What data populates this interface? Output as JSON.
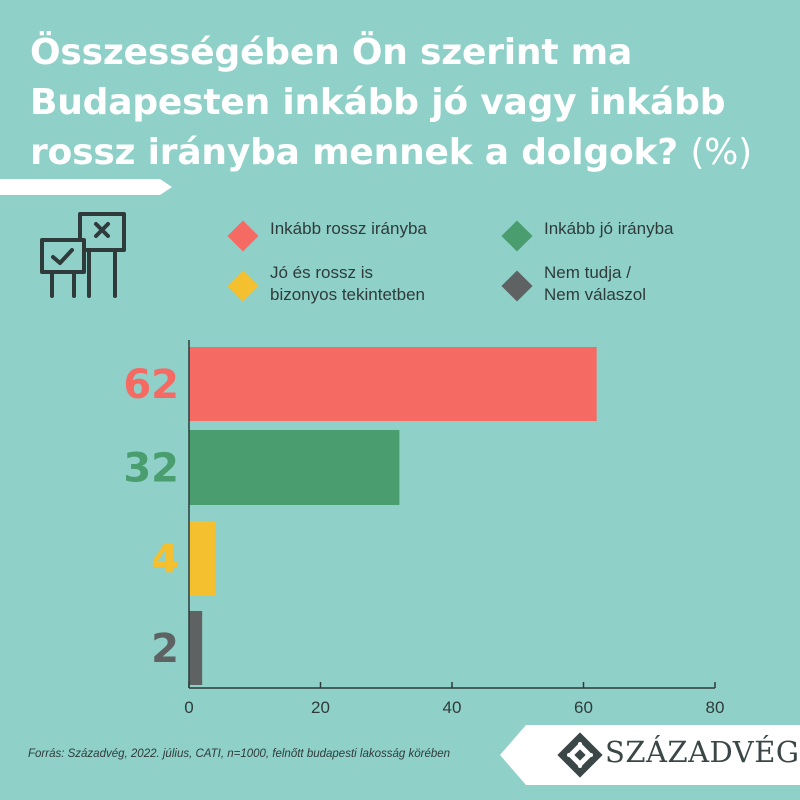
{
  "title": {
    "text": "Összességében Ön szerint ma Budapesten inkább jó vagy inkább rossz irányba mennek a dolgok?",
    "unit": "(%)"
  },
  "legend": [
    {
      "label": "Inkább rossz irányba",
      "color": "#f56b63"
    },
    {
      "label": "Inkább jó irányba",
      "color": "#4a9d6f"
    },
    {
      "label": "Jó és rossz is\nbizonyos tekintetben",
      "color": "#f5c02f"
    },
    {
      "label": "Nem tudja /\nNem válaszol",
      "color": "#5f6262"
    }
  ],
  "chart_data": {
    "type": "bar",
    "orientation": "horizontal",
    "title": "Összességében Ön szerint ma Budapesten inkább jó vagy inkább rossz irányba mennek a dolgok? (%)",
    "categories": [
      "Inkább rossz irányba",
      "Inkább jó irányba",
      "Jó és rossz is bizonyos tekintetben",
      "Nem tudja / Nem válaszol"
    ],
    "values": [
      62,
      32,
      4,
      2
    ],
    "colors": [
      "#f56b63",
      "#4a9d6f",
      "#f5c02f",
      "#5f6262"
    ],
    "xlim": [
      0,
      80
    ],
    "xticks": [
      0,
      20,
      40,
      60,
      80
    ],
    "grid": false,
    "legend_position": "top"
  },
  "footer": {
    "source": "Forrás: Századvég, 2022. július, CATI, n=1000,  felnőtt budapesti lakosság körében",
    "logo_text": "SZÁZADVÉG"
  },
  "icons": {
    "top": "ballot-signs-icon",
    "logo": "szazadveg-logo-icon"
  }
}
